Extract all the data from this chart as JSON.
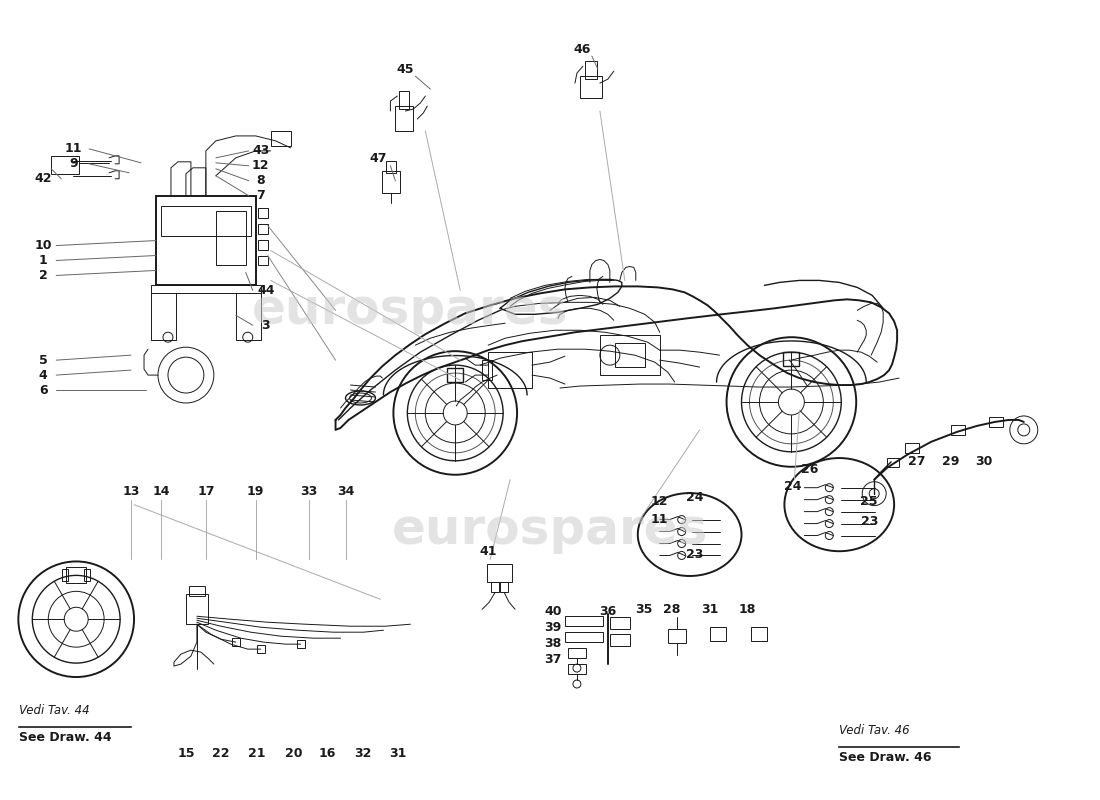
{
  "background_color": "#ffffff",
  "line_color": "#1a1a1a",
  "watermark_color": "#cccccc",
  "note_left_top": "Vedi Tav. 44",
  "note_left_bottom": "See Draw. 44",
  "note_right_top": "Vedi Tav. 46",
  "note_right_bottom": "See Draw. 46",
  "fig_width": 11.0,
  "fig_height": 8.0,
  "dpi": 100
}
